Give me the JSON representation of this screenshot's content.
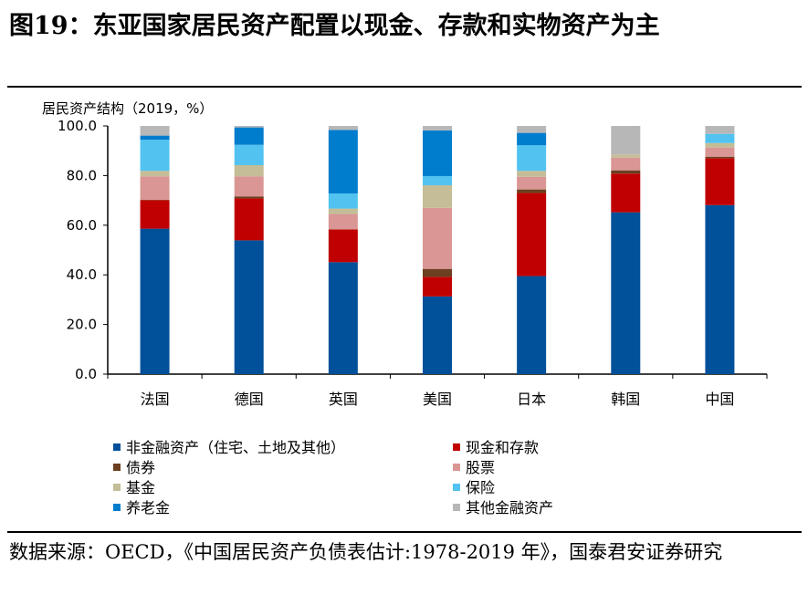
{
  "title": "图19：东亚国家居民资产配置以现金、存款和实物资产为主",
  "source": "数据来源：OECD，《中国居民资产负债表估计:1978-2019 年》，国泰君安证券研究",
  "chart_data": {
    "type": "bar",
    "stacked": true,
    "ylabel": "居民资产结构（2019，%）",
    "ylim": [
      0,
      100
    ],
    "yticks": [
      "0.0",
      "20.0",
      "40.0",
      "60.0",
      "80.0",
      "100.0"
    ],
    "grid": false,
    "legend_position": "bottom",
    "categories": [
      "法国",
      "德国",
      "英国",
      "美国",
      "日本",
      "韩国",
      "中国"
    ],
    "series": [
      {
        "name": "非金融资产（住宅、土地及其他）",
        "color": "#00509A",
        "values": [
          58.6,
          53.9,
          45.1,
          31.3,
          39.5,
          65.2,
          68.1
        ]
      },
      {
        "name": "现金和存款",
        "color": "#C00000",
        "values": [
          11.5,
          16.9,
          13.2,
          7.9,
          33.5,
          15.6,
          18.9
        ]
      },
      {
        "name": "债券",
        "color": "#6B3F1F",
        "values": [
          0.2,
          0.8,
          0.0,
          3.2,
          1.4,
          1.3,
          0.6
        ]
      },
      {
        "name": "股票",
        "color": "#D99694",
        "values": [
          9.4,
          8.1,
          6.2,
          24.6,
          5.1,
          5.1,
          3.7
        ]
      },
      {
        "name": "基金",
        "color": "#C4BD97",
        "values": [
          2.2,
          4.5,
          2.2,
          9.1,
          2.4,
          1.3,
          1.8
        ]
      },
      {
        "name": "保险",
        "color": "#52C3F0",
        "values": [
          12.5,
          8.2,
          6.1,
          3.7,
          10.3,
          0.0,
          3.7
        ]
      },
      {
        "name": "养老金",
        "color": "#007DCD",
        "values": [
          1.7,
          7.0,
          25.6,
          18.4,
          5.0,
          0.0,
          0.0
        ]
      },
      {
        "name": "其他金融资产",
        "color": "#B7B7B7",
        "values": [
          3.9,
          0.6,
          1.6,
          1.8,
          2.8,
          11.5,
          3.2
        ]
      }
    ]
  }
}
